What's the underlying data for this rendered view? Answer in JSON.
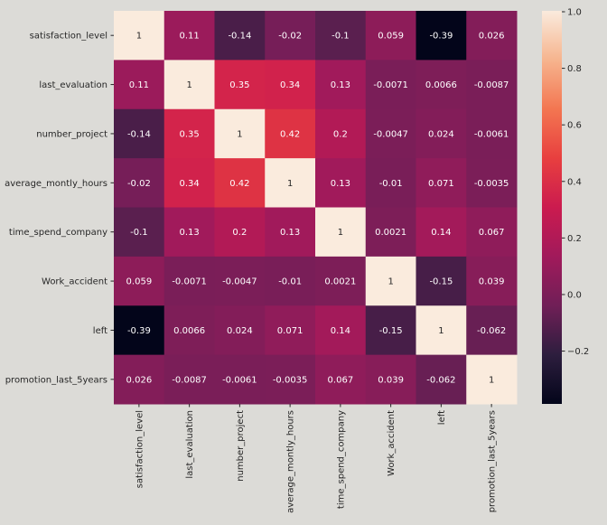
{
  "chart_data": {
    "type": "heatmap",
    "title": "",
    "xlabel": "",
    "ylabel": "",
    "labels": [
      "satisfaction_level",
      "last_evaluation",
      "number_project",
      "average_montly_hours",
      "time_spend_company",
      "Work_accident",
      "left",
      "promotion_last_5years"
    ],
    "matrix": [
      [
        "1",
        "0.11",
        "-0.14",
        "-0.02",
        "-0.1",
        "0.059",
        "-0.39",
        "0.026"
      ],
      [
        "0.11",
        "1",
        "0.35",
        "0.34",
        "0.13",
        "-0.0071",
        "0.0066",
        "-0.0087"
      ],
      [
        "-0.14",
        "0.35",
        "1",
        "0.42",
        "0.2",
        "-0.0047",
        "0.024",
        "-0.0061"
      ],
      [
        "-0.02",
        "0.34",
        "0.42",
        "1",
        "0.13",
        "-0.01",
        "0.071",
        "-0.0035"
      ],
      [
        "-0.1",
        "0.13",
        "0.2",
        "0.13",
        "1",
        "0.0021",
        "0.14",
        "0.067"
      ],
      [
        "0.059",
        "-0.0071",
        "-0.0047",
        "-0.01",
        "0.0021",
        "1",
        "-0.15",
        "0.039"
      ],
      [
        "-0.39",
        "0.0066",
        "0.024",
        "0.071",
        "0.14",
        "-0.15",
        "1",
        "-0.062"
      ],
      [
        "0.026",
        "-0.0087",
        "-0.0061",
        "-0.0035",
        "0.067",
        "0.039",
        "-0.062",
        "1"
      ]
    ],
    "colormap": "rocket",
    "colorbar": {
      "range": [
        -0.39,
        1.0
      ],
      "ticks": [
        "1.0",
        "0.8",
        "0.6",
        "0.4",
        "0.2",
        "0.0",
        "−0.2"
      ],
      "tick_values": [
        1.0,
        0.8,
        0.6,
        0.4,
        0.2,
        0.0,
        -0.2
      ],
      "placement": "right"
    },
    "annotated": true,
    "grid": false
  },
  "colors": {
    "background": "#dcdbd7",
    "cmap_stops": [
      "#03051a",
      "#2d1e3e",
      "#701f57",
      "#a11a5b",
      "#cb1b4f",
      "#e83f3f",
      "#f37651",
      "#f6b48e",
      "#faebdd"
    ]
  }
}
